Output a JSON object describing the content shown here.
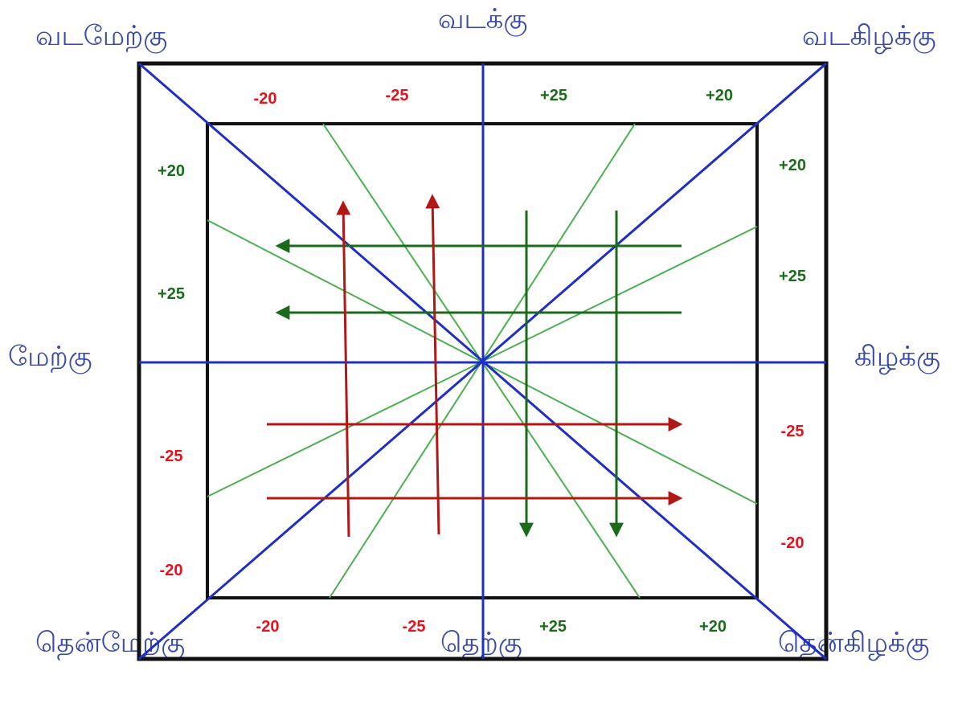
{
  "directions": {
    "north": "வடக்கு",
    "northwest": "வடமேற்கு",
    "northeast": "வடகிழக்கு",
    "west": "மேற்கு",
    "east": "கிழக்கு",
    "south": "தெற்கு",
    "southwest": "தென்மேற்கு",
    "southeast": "தென்கிழக்கு"
  },
  "values": {
    "top": [
      "-20",
      "-25",
      "+25",
      "+20"
    ],
    "bottom": [
      "-20",
      "-25",
      "+25",
      "+20"
    ],
    "left": [
      "+20",
      "+25",
      "-25",
      "-20"
    ],
    "right": [
      "+20",
      "+25",
      "-25",
      "-20"
    ]
  },
  "colors": {
    "label": "#3a4aa8",
    "axis": "#1f2ec4",
    "positive": "#1a6b1a",
    "negative": "#e8101b",
    "ray": "#4caf50",
    "frame": "#111111"
  }
}
